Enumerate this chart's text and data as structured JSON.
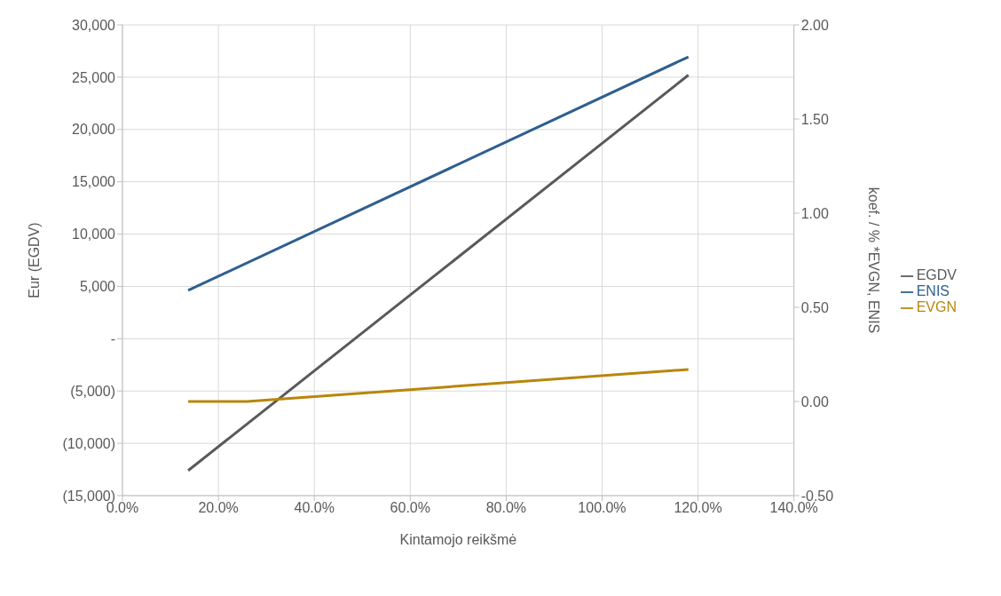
{
  "chart_data": {
    "type": "line",
    "xlabel": "Kintamojo reikšmė",
    "ylabel": "Eur (EGDV)",
    "y2label": "koef. / % *EVGN, ENIS",
    "xlim": [
      0,
      140
    ],
    "xticks": [
      {
        "value": 0,
        "label": "0.0%"
      },
      {
        "value": 20,
        "label": "20.0%"
      },
      {
        "value": 40,
        "label": "40.0%"
      },
      {
        "value": 60,
        "label": "60.0%"
      },
      {
        "value": 80,
        "label": "80.0%"
      },
      {
        "value": 100,
        "label": "100.0%"
      },
      {
        "value": 120,
        "label": "120.0%"
      },
      {
        "value": 140,
        "label": "140.0%"
      }
    ],
    "ylim": [
      -15000,
      30000
    ],
    "yticks": [
      {
        "value": -15000,
        "label": "(15,000)"
      },
      {
        "value": -10000,
        "label": "(10,000)"
      },
      {
        "value": -5000,
        "label": "(5,000)"
      },
      {
        "value": 0,
        "label": "-"
      },
      {
        "value": 5000,
        "label": "5,000"
      },
      {
        "value": 10000,
        "label": "10,000"
      },
      {
        "value": 15000,
        "label": "15,000"
      },
      {
        "value": 20000,
        "label": "20,000"
      },
      {
        "value": 25000,
        "label": "25,000"
      },
      {
        "value": 30000,
        "label": "30,000"
      }
    ],
    "y2lim": [
      -0.5,
      2
    ],
    "y2ticks": [
      {
        "value": -0.5,
        "label": "-0.50"
      },
      {
        "value": 0,
        "label": "0.00"
      },
      {
        "value": 0.5,
        "label": "0.50"
      },
      {
        "value": 1,
        "label": "1.00"
      },
      {
        "value": 1.5,
        "label": "1.50"
      },
      {
        "value": 2,
        "label": "2.00"
      }
    ],
    "grid": true,
    "legend": "right",
    "marker": "none",
    "line_style": "solid",
    "series": [
      {
        "name": "EGDV",
        "color": "#595959",
        "x": [
          13.7,
          118
        ],
        "values": [
          -12600,
          25200
        ]
      },
      {
        "name": "EVGN",
        "color": "#b8860b",
        "axis": "y2",
        "x": [
          13.7,
          26,
          118
        ],
        "values": [
          0,
          0,
          0.17
        ]
      },
      {
        "name": "ENIS",
        "color": "#2e5f8f",
        "axis": "y2",
        "x": [
          13.7,
          118
        ],
        "values": [
          0.59,
          1.83
        ]
      }
    ]
  }
}
